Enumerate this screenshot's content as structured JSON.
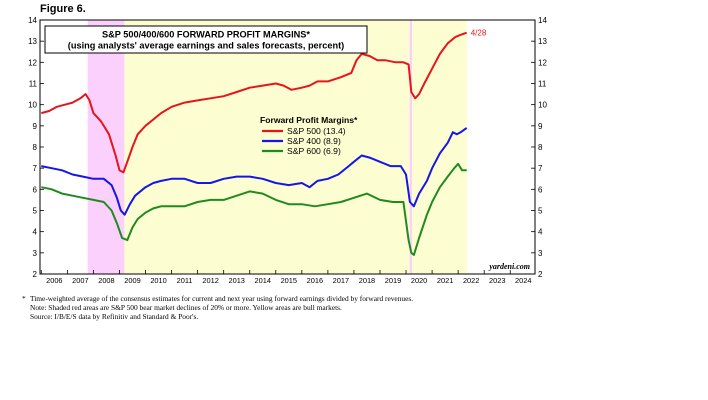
{
  "figure_label": "Figure 6.",
  "chart_data": {
    "type": "line",
    "title": "S&P 500/400/600 FORWARD PROFIT MARGINS*",
    "subtitle": "(using analysts' average earnings and sales forecasts, percent)",
    "x_tick_labels": [
      "2006",
      "2007",
      "2008",
      "2009",
      "2010",
      "2011",
      "2012",
      "2013",
      "2014",
      "2015",
      "2016",
      "2017",
      "2018",
      "2019",
      "2020",
      "2021",
      "2022",
      "2023",
      "2024"
    ],
    "xlim": [
      2005.95,
      2024.95
    ],
    "ylim": [
      2,
      14
    ],
    "y_ticks": [
      2,
      3,
      4,
      5,
      6,
      7,
      8,
      9,
      10,
      11,
      12,
      13,
      14
    ],
    "grid": false,
    "legend_title": "Forward Profit Margins*",
    "legend_position": "center",
    "source_label": "yardeni.com",
    "end_annotation": "4/28",
    "shaded_periods": [
      {
        "type": "bear",
        "color": "#fcd0fc",
        "start": 2007.78,
        "end": 2009.19
      },
      {
        "type": "bull",
        "color": "#fdfdd2",
        "start": 2009.19,
        "end": 2020.14
      },
      {
        "type": "bear",
        "color": "#fcd0fc",
        "start": 2020.14,
        "end": 2020.23
      },
      {
        "type": "bull",
        "color": "#fdfdd2",
        "start": 2020.23,
        "end": 2022.34
      }
    ],
    "series": [
      {
        "name": "S&P 500 (13.4)",
        "color": "#e8141c",
        "x": [
          2006.0,
          2006.3,
          2006.6,
          2006.9,
          2007.2,
          2007.5,
          2007.7,
          2007.85,
          2008.0,
          2008.3,
          2008.6,
          2008.85,
          2009.0,
          2009.15,
          2009.3,
          2009.5,
          2009.7,
          2010.0,
          2010.3,
          2010.6,
          2011.0,
          2011.5,
          2012.0,
          2012.5,
          2013.0,
          2013.5,
          2014.0,
          2014.5,
          2015.0,
          2015.3,
          2015.6,
          2016.0,
          2016.3,
          2016.6,
          2017.0,
          2017.5,
          2017.9,
          2018.1,
          2018.3,
          2018.6,
          2018.9,
          2019.2,
          2019.6,
          2019.9,
          2020.1,
          2020.2,
          2020.35,
          2020.5,
          2020.7,
          2021.0,
          2021.3,
          2021.6,
          2021.9,
          2022.1,
          2022.33
        ],
        "values": [
          9.6,
          9.7,
          9.9,
          10.0,
          10.1,
          10.3,
          10.5,
          10.2,
          9.6,
          9.2,
          8.6,
          7.6,
          6.9,
          6.8,
          7.3,
          8.0,
          8.6,
          9.0,
          9.3,
          9.6,
          9.9,
          10.1,
          10.2,
          10.3,
          10.4,
          10.6,
          10.8,
          10.9,
          11.0,
          10.9,
          10.7,
          10.8,
          10.9,
          11.1,
          11.1,
          11.3,
          11.5,
          12.1,
          12.4,
          12.3,
          12.1,
          12.1,
          12.0,
          12.0,
          11.9,
          10.6,
          10.3,
          10.5,
          11.0,
          11.7,
          12.4,
          12.9,
          13.2,
          13.3,
          13.4
        ]
      },
      {
        "name": "S&P 400 (8.9)",
        "color": "#1515e8",
        "x": [
          2006.0,
          2006.4,
          2006.8,
          2007.2,
          2007.6,
          2008.0,
          2008.4,
          2008.7,
          2008.9,
          2009.05,
          2009.2,
          2009.4,
          2009.6,
          2010.0,
          2010.3,
          2010.6,
          2011.0,
          2011.5,
          2012.0,
          2012.5,
          2013.0,
          2013.5,
          2014.0,
          2014.5,
          2015.0,
          2015.5,
          2016.0,
          2016.3,
          2016.6,
          2017.0,
          2017.4,
          2017.8,
          2018.0,
          2018.3,
          2018.6,
          2019.0,
          2019.4,
          2019.8,
          2020.0,
          2020.15,
          2020.3,
          2020.5,
          2020.8,
          2021.0,
          2021.3,
          2021.6,
          2021.8,
          2021.95,
          2022.1,
          2022.33
        ],
        "values": [
          7.1,
          7.0,
          6.9,
          6.7,
          6.6,
          6.5,
          6.5,
          6.2,
          5.6,
          5.0,
          4.8,
          5.3,
          5.7,
          6.1,
          6.3,
          6.4,
          6.5,
          6.5,
          6.3,
          6.3,
          6.5,
          6.6,
          6.6,
          6.5,
          6.3,
          6.2,
          6.3,
          6.1,
          6.4,
          6.5,
          6.7,
          7.1,
          7.3,
          7.6,
          7.5,
          7.3,
          7.1,
          7.1,
          6.7,
          5.4,
          5.2,
          5.8,
          6.4,
          7.0,
          7.7,
          8.2,
          8.7,
          8.6,
          8.7,
          8.9
        ]
      },
      {
        "name": "S&P 600 (6.9)",
        "color": "#1f8a1f",
        "x": [
          2006.0,
          2006.4,
          2006.8,
          2007.2,
          2007.6,
          2008.0,
          2008.4,
          2008.7,
          2008.9,
          2009.1,
          2009.3,
          2009.5,
          2009.7,
          2010.0,
          2010.3,
          2010.6,
          2011.0,
          2011.5,
          2012.0,
          2012.5,
          2013.0,
          2013.5,
          2014.0,
          2014.5,
          2015.0,
          2015.5,
          2016.0,
          2016.5,
          2017.0,
          2017.5,
          2018.0,
          2018.5,
          2019.0,
          2019.5,
          2019.9,
          2020.1,
          2020.2,
          2020.3,
          2020.5,
          2020.8,
          2021.0,
          2021.3,
          2021.6,
          2021.85,
          2022.0,
          2022.15,
          2022.33
        ],
        "values": [
          6.1,
          6.0,
          5.8,
          5.7,
          5.6,
          5.5,
          5.4,
          5.0,
          4.4,
          3.7,
          3.6,
          4.2,
          4.6,
          4.9,
          5.1,
          5.2,
          5.2,
          5.2,
          5.4,
          5.5,
          5.5,
          5.7,
          5.9,
          5.8,
          5.5,
          5.3,
          5.3,
          5.2,
          5.3,
          5.4,
          5.6,
          5.8,
          5.5,
          5.4,
          5.4,
          3.6,
          3.0,
          2.9,
          3.7,
          4.8,
          5.4,
          6.1,
          6.6,
          7.0,
          7.2,
          6.9,
          6.9
        ]
      }
    ]
  },
  "footnotes": {
    "star": "*",
    "line1": "Time-weighted average of the consensus estimates for current and next year using forward earnings divided by forward revenues.",
    "line2": "Note: Shaded red areas are S&P 500 bear market declines of 20% or more. Yellow areas are bull markets.",
    "line3": "Source: I/B/E/S data by Refinitiv and Standard & Poor's."
  }
}
